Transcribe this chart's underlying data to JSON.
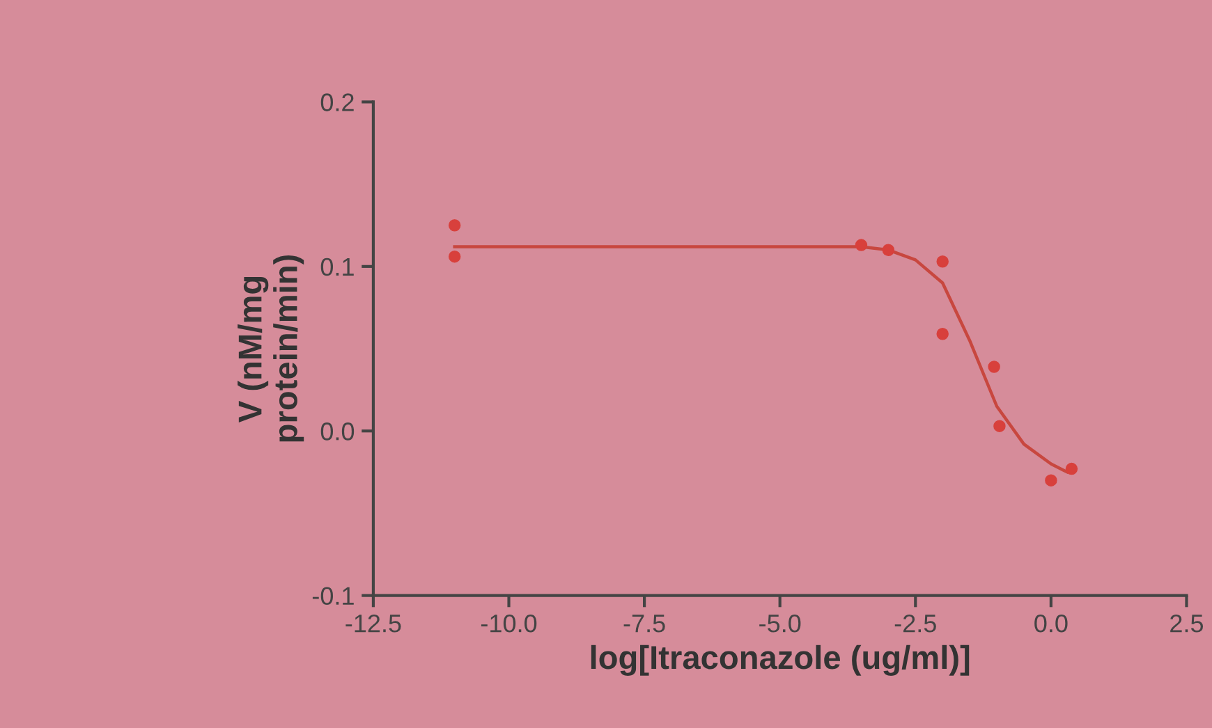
{
  "chart_data": {
    "type": "scatter",
    "xlabel": "log[Itraconazole (ug/ml)]",
    "ylabel": "V (nM/mg\nprotein/min)",
    "xlim": [
      -12.5,
      2.5
    ],
    "xticks": [
      -12.5,
      {
        "value": -10,
        "label": "-10.0"
      },
      -7.5,
      {
        "value": -5,
        "label": "-5.0"
      },
      -2.5,
      {
        "value": 0,
        "label": "0.0"
      },
      2.5
    ],
    "ylim": [
      -0.1,
      0.2
    ],
    "yticks": [
      -0.1,
      {
        "value": 0,
        "label": "0.0"
      },
      0.1,
      0.2
    ],
    "grid": false,
    "marker": "circle",
    "series": [
      {
        "color": "#d8403c",
        "x": [
          -11.0,
          -11.0,
          -3.5,
          -3.0,
          -2.0,
          -2.0,
          -1.05,
          -0.95,
          0.0,
          0.38
        ],
        "values": [
          0.125,
          0.106,
          0.113,
          0.11,
          0.103,
          0.059,
          0.039,
          0.003,
          -0.03,
          -0.023
        ]
      },
      {
        "type": "line",
        "color": "#c8473f",
        "marker": "none",
        "x": [
          -11.0,
          -5.0,
          -3.5,
          -3.0,
          -2.5,
          -2.0,
          -1.5,
          -1.0,
          -0.5,
          0.0,
          0.3
        ],
        "values": [
          0.112,
          0.112,
          0.112,
          0.11,
          0.104,
          0.09,
          0.055,
          0.015,
          -0.008,
          -0.02,
          -0.025
        ]
      }
    ]
  }
}
